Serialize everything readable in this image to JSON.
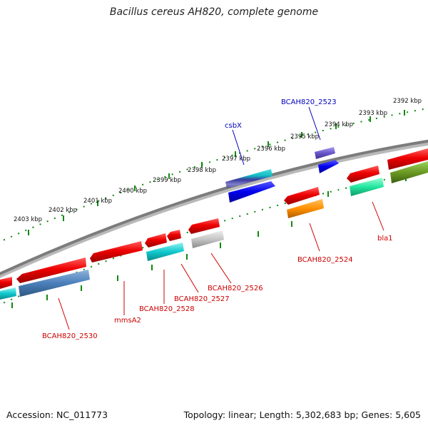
{
  "title": "Bacillus cereus AH820, complete genome",
  "footer": {
    "accession": "Accession: NC_011773",
    "topology": "Topology: linear; Length: 5,302,683 bp; Genes: 5,605"
  },
  "colors": {
    "backbone": "#7c7c7c",
    "tick": "#118811",
    "forward_label": "#0000bb",
    "reverse_label": "#cc0000"
  },
  "tick_labels": [
    "2392 kbp",
    "2393 kbp",
    "2394 kbp",
    "2395 kbp",
    "2396 kbp",
    "2397 kbp",
    "2398 kbp",
    "2399 kbp",
    "2400 kbp",
    "2401 kbp",
    "2402 kbp",
    "2403 kbp"
  ],
  "labels": {
    "BCAH820_2523": "BCAH820_2523",
    "csbX": "csbX",
    "BCAH820_2524": "BCAH820_2524",
    "bla1": "bla1",
    "BCAH820_2526": "BCAH820_2526",
    "BCAH820_2527": "BCAH820_2527",
    "BCAH820_2528": "BCAH820_2528",
    "mmsA2": "mmsA2",
    "BCAH820_2530": "BCAH820_2530"
  }
}
